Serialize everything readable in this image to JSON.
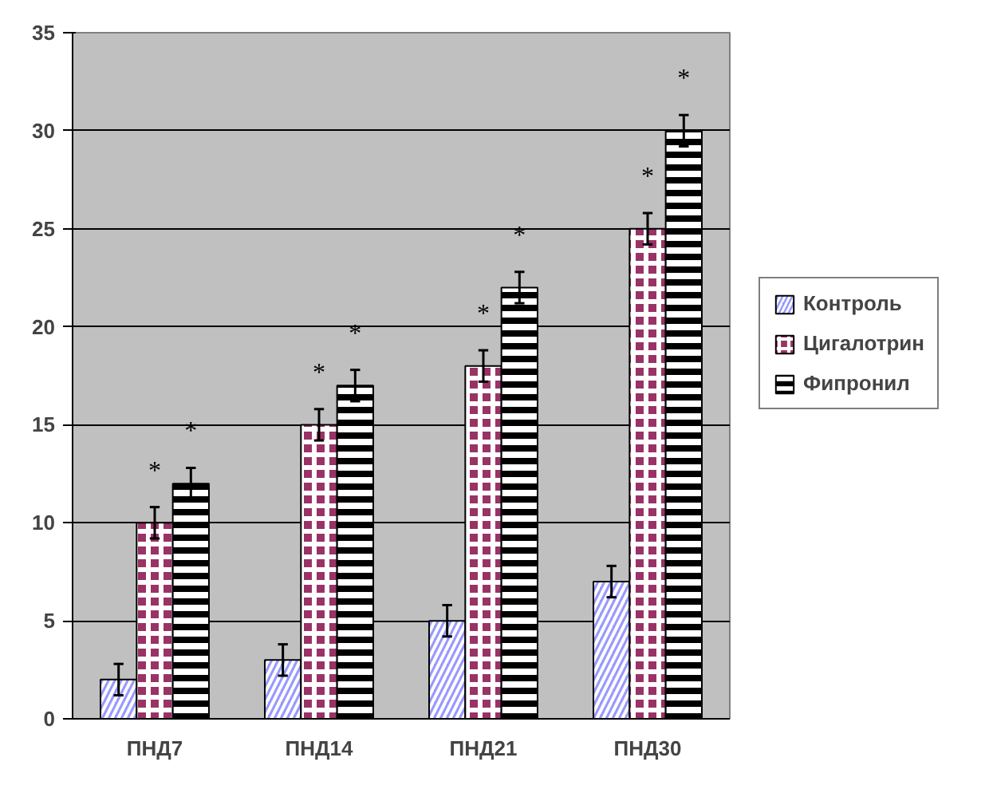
{
  "chart_data": {
    "type": "bar",
    "categories": [
      "ПНД7",
      "ПНД14",
      "ПНД21",
      "ПНД30"
    ],
    "series": [
      {
        "name": "Контроль",
        "color": "#9999ff",
        "values": [
          2,
          3,
          5,
          7
        ],
        "errors": [
          0.8,
          0.8,
          0.8,
          0.8
        ]
      },
      {
        "name": "Цигалотрин",
        "color": "#993366",
        "values": [
          10,
          15,
          18,
          25
        ],
        "errors": [
          0.8,
          0.8,
          0.8,
          0.8
        ],
        "value_labels": [
          "*",
          "*",
          "*",
          "*"
        ]
      },
      {
        "name": "Фипронил",
        "color": "#000000",
        "values": [
          12,
          17,
          22,
          30
        ],
        "errors": [
          0.8,
          0.8,
          0.8,
          0.8
        ],
        "value_labels": [
          "*",
          "*",
          "*",
          "*"
        ]
      }
    ],
    "ylim": [
      0,
      35
    ],
    "yticks": [
      0,
      5,
      10,
      15,
      20,
      25,
      30,
      35
    ],
    "grid": "y",
    "legend": "right"
  }
}
